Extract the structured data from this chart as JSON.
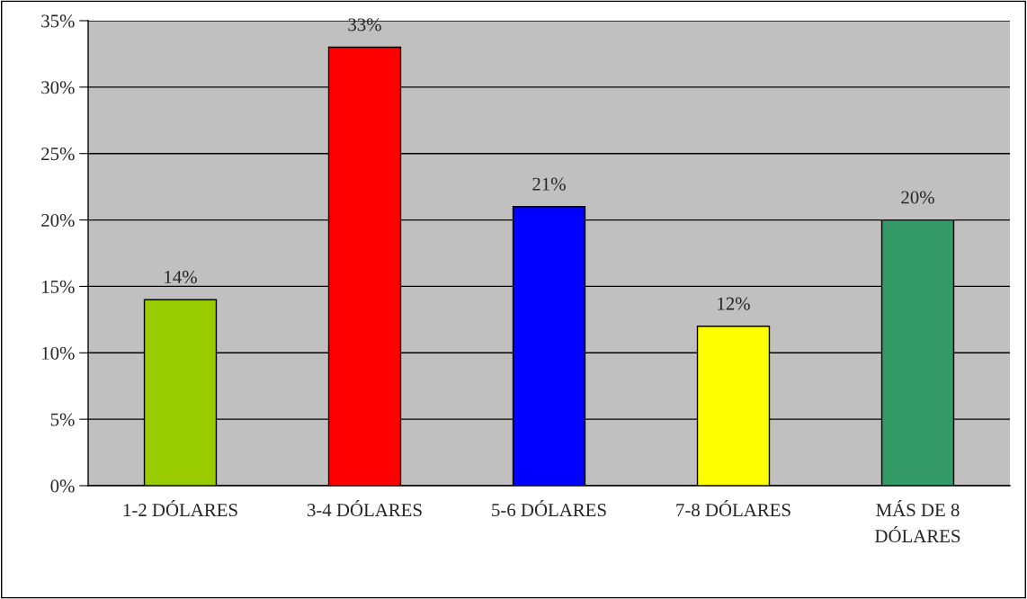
{
  "chart_data": {
    "type": "bar",
    "categories": [
      "1-2 DÓLARES",
      "3-4 DÓLARES",
      "5-6 DÓLARES",
      "7-8 DÓLARES",
      "MÁS DE 8\nDÓLARES"
    ],
    "values": [
      14,
      33,
      21,
      12,
      20
    ],
    "colors": [
      "#99cc00",
      "#ff0000",
      "#0000ff",
      "#ffff00",
      "#339966"
    ],
    "value_labels": [
      "14%",
      "33%",
      "21%",
      "12%",
      "20%"
    ],
    "ylim": [
      0,
      35
    ],
    "yticks": [
      {
        "value": 0,
        "label": "0%"
      },
      {
        "value": 5,
        "label": "5%"
      },
      {
        "value": 10,
        "label": "10%"
      },
      {
        "value": 15,
        "label": "15%"
      },
      {
        "value": 20,
        "label": "20%"
      },
      {
        "value": 25,
        "label": "25%"
      },
      {
        "value": 30,
        "label": "30%"
      },
      {
        "value": 35,
        "label": "35%"
      }
    ],
    "grid": "y",
    "legend": false
  }
}
